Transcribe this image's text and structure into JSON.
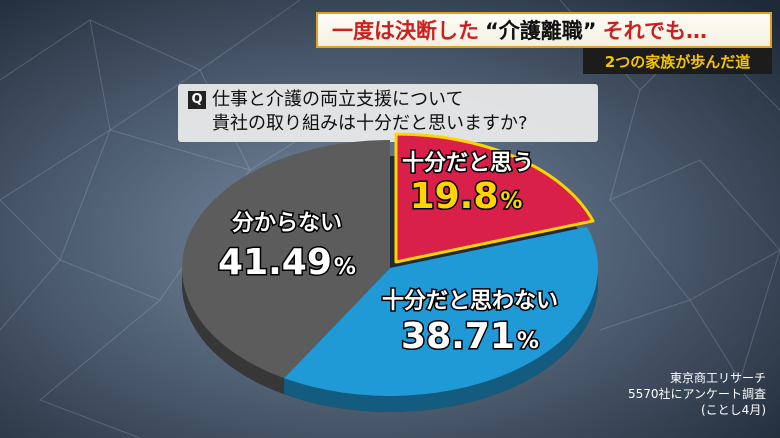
{
  "header": {
    "headline_part1": "一度は決断した",
    "headline_part2": "“介護離職”",
    "headline_part3": "それでも…",
    "subheadline": "2つの家族が歩んだ道"
  },
  "question": {
    "badge": "Q",
    "line1": "仕事と介護の両立支援について",
    "line2": "貴社の取り組みは十分だと思いますか?"
  },
  "chart_data": {
    "type": "pie",
    "title": "",
    "slices": [
      {
        "label": "十分だと思う",
        "value": 19.8,
        "display": "19.8",
        "unit": "%",
        "color": "#d8204a",
        "label_color": "#ffffff",
        "value_color": "#ffd400",
        "exploded": true
      },
      {
        "label": "十分だと思わない",
        "value": 38.71,
        "display": "38.71",
        "unit": "%",
        "color": "#1f9ad6",
        "label_color": "#ffffff",
        "value_color": "#ffffff",
        "exploded": false
      },
      {
        "label": "分からない",
        "value": 41.49,
        "display": "41.49",
        "unit": "%",
        "color": "#5c5c5c",
        "label_color": "#ffffff",
        "value_color": "#ffffff",
        "exploded": false
      }
    ]
  },
  "source": {
    "line1": "東京商工リサーチ",
    "line2": "5570社にアンケート調査",
    "line3": "(ことし4月)"
  }
}
